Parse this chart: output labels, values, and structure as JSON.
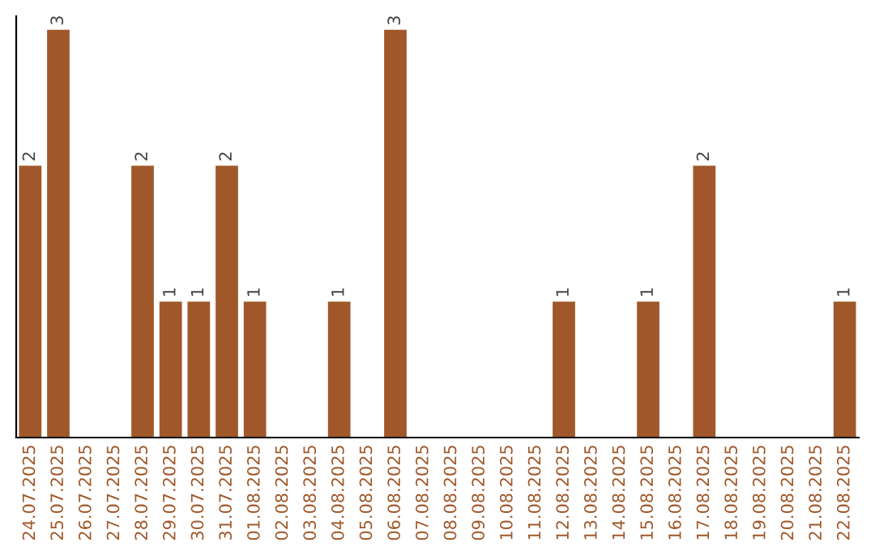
{
  "chart_data": {
    "type": "bar",
    "categories": [
      "24.07.2025",
      "25.07.2025",
      "26.07.2025",
      "27.07.2025",
      "28.07.2025",
      "29.07.2025",
      "30.07.2025",
      "31.07.2025",
      "01.08.2025",
      "02.08.2025",
      "03.08.2025",
      "04.08.2025",
      "05.08.2025",
      "06.08.2025",
      "07.08.2025",
      "08.08.2025",
      "09.08.2025",
      "10.08.2025",
      "11.08.2025",
      "12.08.2025",
      "13.08.2025",
      "14.08.2025",
      "15.08.2025",
      "16.08.2025",
      "17.08.2025",
      "18.08.2025",
      "19.08.2025",
      "20.08.2025",
      "21.08.2025",
      "22.08.2025"
    ],
    "values": [
      2,
      3,
      0,
      0,
      2,
      1,
      1,
      2,
      1,
      0,
      0,
      1,
      0,
      3,
      0,
      0,
      0,
      0,
      0,
      1,
      0,
      0,
      1,
      0,
      2,
      0,
      0,
      0,
      0,
      1
    ],
    "value_labels": [
      "2",
      "3",
      null,
      null,
      "2",
      "1",
      "1",
      "2",
      "1",
      null,
      null,
      "1",
      null,
      "3",
      null,
      null,
      null,
      null,
      null,
      "1",
      null,
      null,
      "1",
      null,
      "2",
      null,
      null,
      null,
      null,
      "1"
    ],
    "color": "#a0582a",
    "ylim": [
      0,
      3.1
    ],
    "tick_labels": "x",
    "grid": false,
    "legend": false
  }
}
